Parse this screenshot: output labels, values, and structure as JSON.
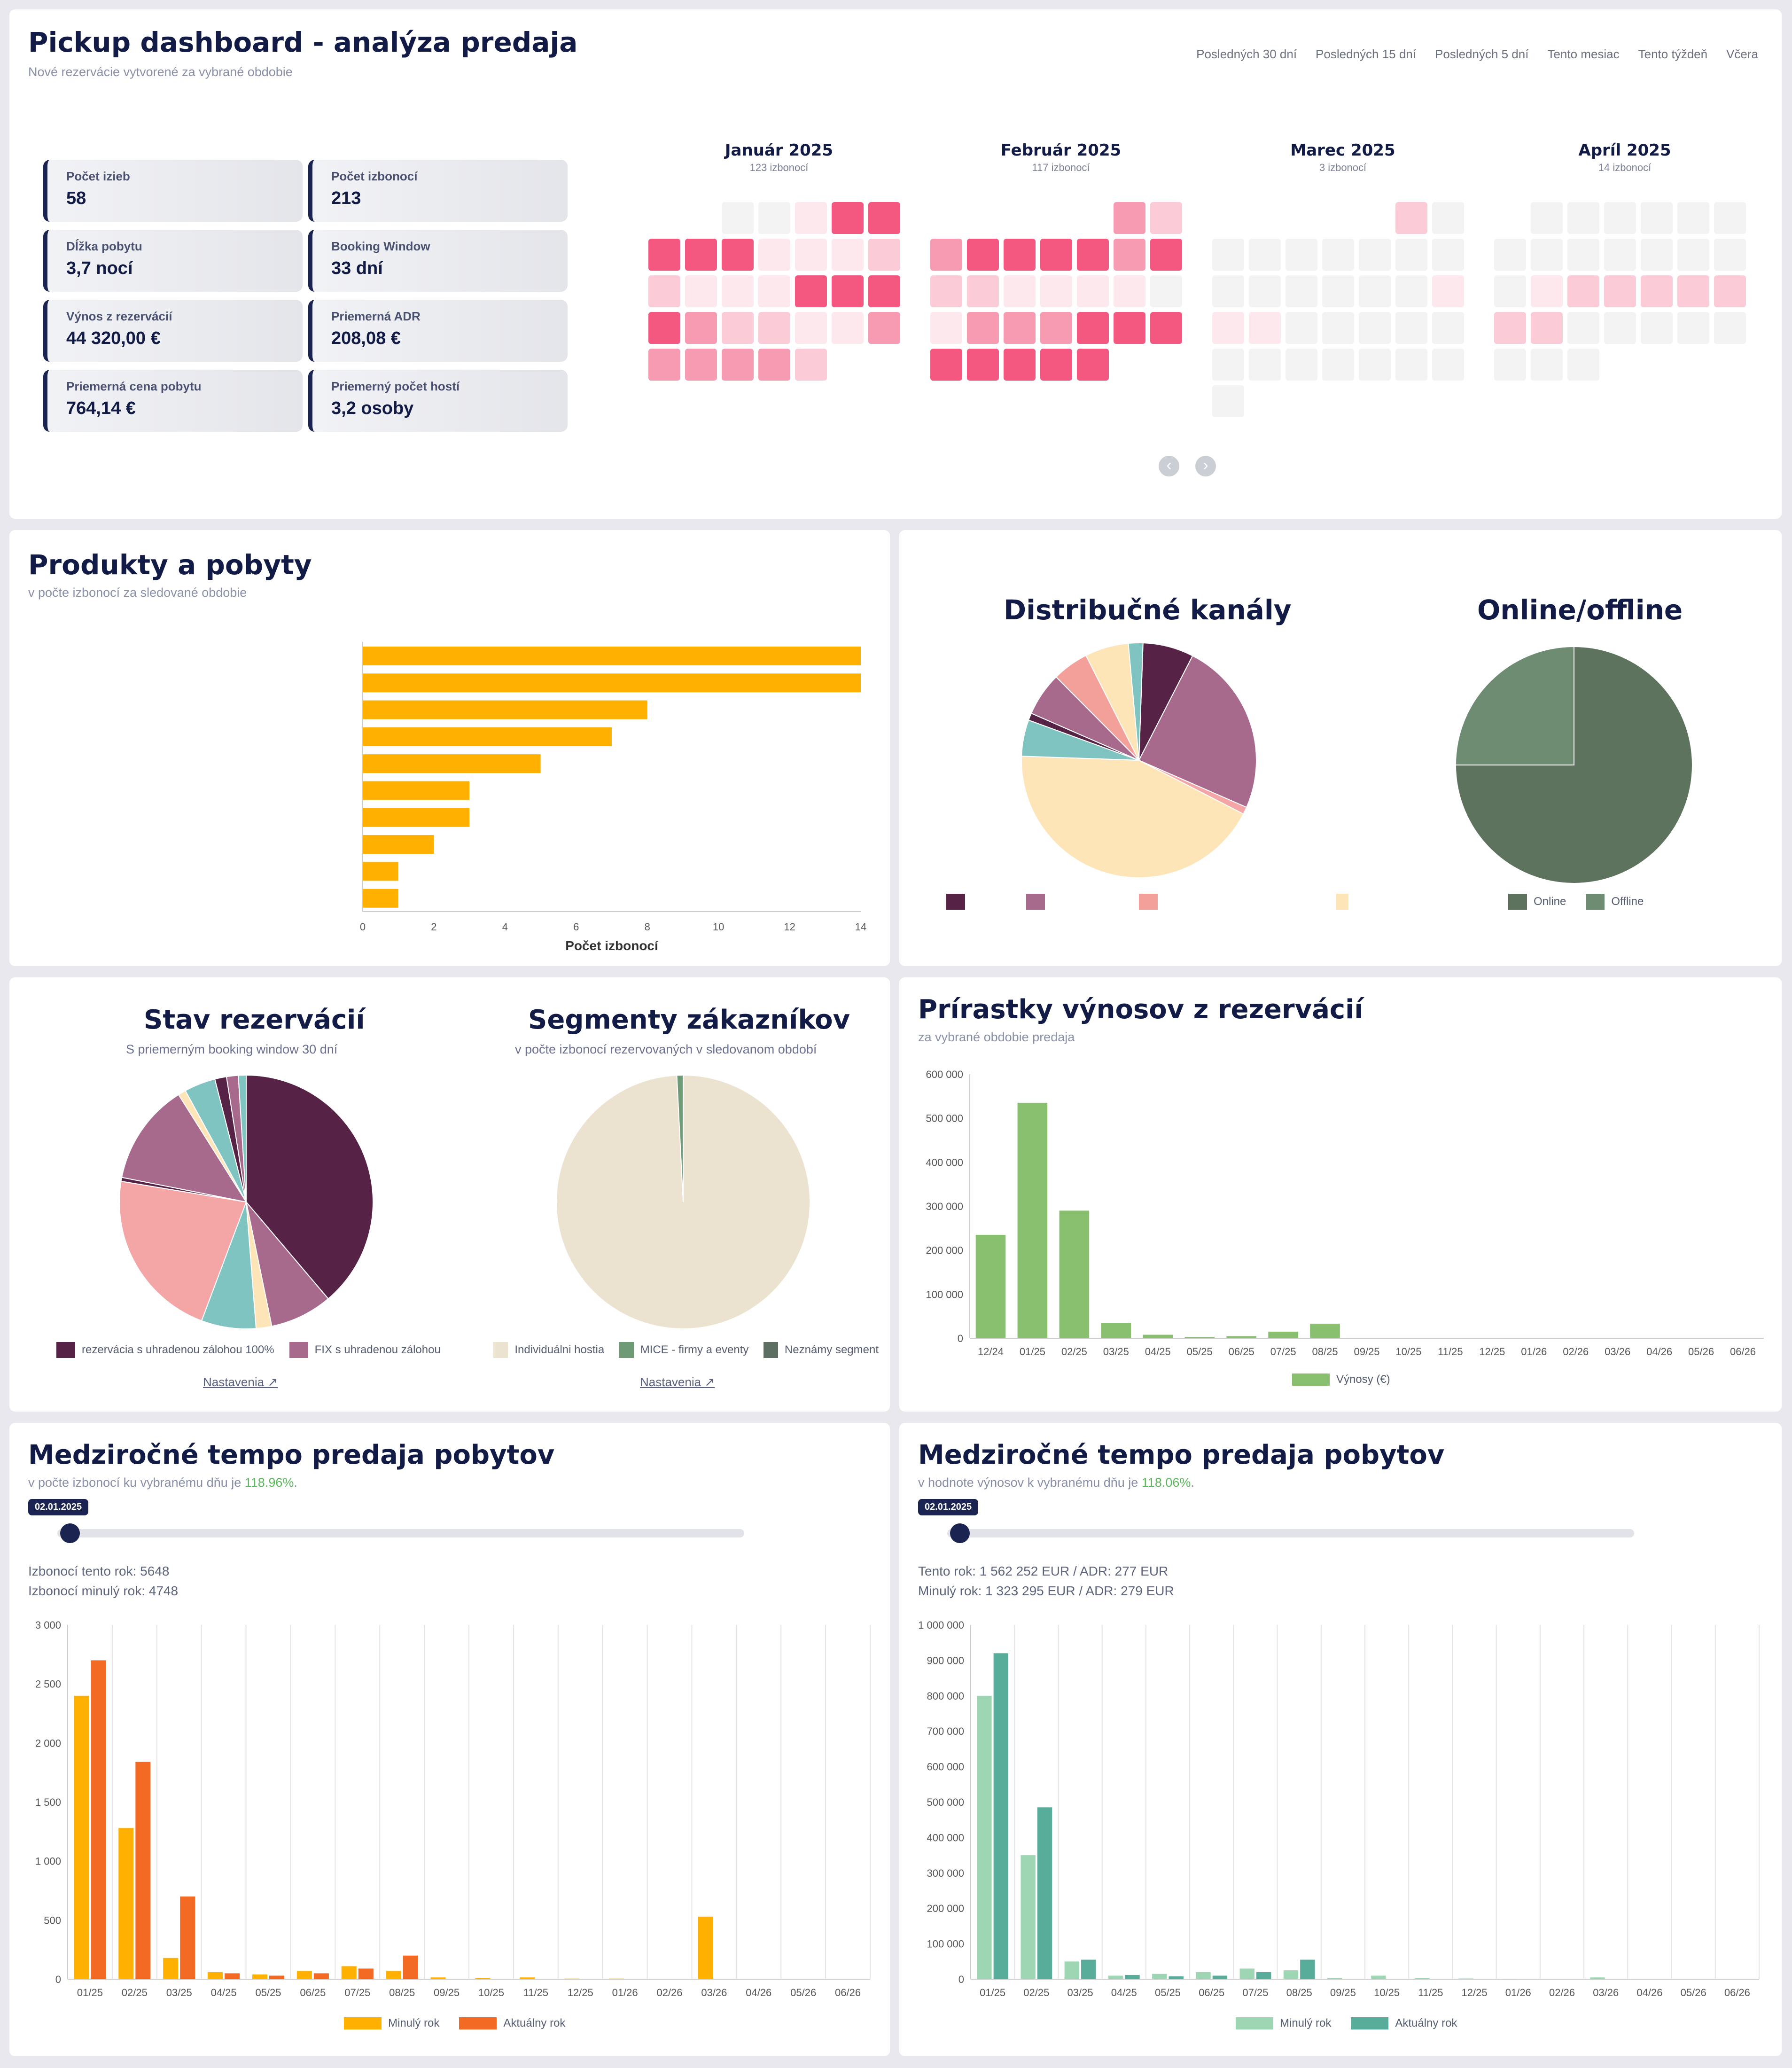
{
  "header": {
    "title": "Pickup dashboard - analýza predaja",
    "subtitle": "Nové rezervácie vytvorené za vybrané obdobie",
    "ranges": [
      "Posledných 30 dní",
      "Posledných 15 dní",
      "Posledných 5 dní",
      "Tento mesiac",
      "Tento týždeň",
      "Včera"
    ]
  },
  "kpis": [
    {
      "label": "Počet izieb",
      "value": "58"
    },
    {
      "label": "Počet izbonocí",
      "value": "213"
    },
    {
      "label": "Dĺžka pobytu",
      "value": "3,7 nocí"
    },
    {
      "label": "Booking Window",
      "value": "33 dní"
    },
    {
      "label": "Výnos z rezervácií",
      "value": "44 320,00 €"
    },
    {
      "label": "Priemerná ADR",
      "value": "208,08 €"
    },
    {
      "label": "Priemerná cena pobytu",
      "value": "764,14 €"
    },
    {
      "label": "Priemerný počet hostí",
      "value": "3,2 osoby"
    }
  ],
  "calendars": [
    {
      "month": "Január 2025",
      "count": "123 izbonocí",
      "offset": 2,
      "days": 31,
      "levels": [
        0,
        0,
        1,
        4,
        4,
        4,
        4,
        4,
        1,
        1,
        1,
        2,
        2,
        1,
        1,
        1,
        4,
        4,
        4,
        4,
        3,
        2,
        2,
        1,
        1,
        3,
        3,
        3,
        3,
        3,
        2
      ]
    },
    {
      "month": "Február 2025",
      "count": "117 izbonocí",
      "offset": 5,
      "days": 28,
      "levels": [
        3,
        2,
        3,
        4,
        4,
        4,
        4,
        3,
        4,
        2,
        2,
        1,
        1,
        1,
        1,
        0,
        1,
        3,
        3,
        3,
        4,
        4,
        4,
        4,
        4,
        4,
        4,
        4
      ]
    },
    {
      "month": "Marec 2025",
      "count": "3 izbonocí",
      "offset": 5,
      "days": 31,
      "levels": [
        2,
        0,
        0,
        0,
        0,
        0,
        0,
        0,
        0,
        0,
        0,
        0,
        0,
        0,
        0,
        1,
        1,
        1,
        0,
        0,
        0,
        0,
        0,
        0,
        0,
        0,
        0,
        0,
        0,
        0,
        0
      ]
    },
    {
      "month": "Apríl 2025",
      "count": "14 izbonocí",
      "offset": 1,
      "days": 30,
      "levels": [
        0,
        0,
        0,
        0,
        0,
        0,
        0,
        0,
        0,
        0,
        0,
        0,
        0,
        0,
        1,
        2,
        2,
        2,
        2,
        2,
        2,
        2,
        0,
        0,
        0,
        0,
        0,
        0,
        0,
        0
      ]
    }
  ],
  "calendar_colors": [
    "#f3f3f3",
    "#fde8ee",
    "#fbcbd8",
    "#f79bb3",
    "#f4577f"
  ],
  "products": {
    "title": "Produkty a pobyty",
    "subtitle": "v počte izbonocí za sledované obdobie",
    "chart_data": {
      "type": "bar",
      "categories": [
        "",
        "",
        "",
        "",
        "",
        "",
        "",
        "",
        "",
        ""
      ],
      "values": [
        14,
        14,
        8,
        7,
        5,
        3,
        3,
        2,
        1,
        1
      ],
      "xlabel": "Počet izbonocí",
      "ticks": [
        "0",
        "2",
        "4",
        "6",
        "8",
        "10",
        "12",
        "14"
      ],
      "xlim": [
        0,
        14
      ],
      "color": "#ffb000"
    }
  },
  "channels": {
    "title": "Distribučné kanály",
    "chart_data": {
      "type": "pie",
      "slices": [
        {
          "value": 7,
          "color": "#562246"
        },
        {
          "value": 24,
          "color": "#a86a8c"
        },
        {
          "value": 1,
          "color": "#f4a6a6"
        },
        {
          "value": 43,
          "color": "#fde5b8"
        },
        {
          "value": 5,
          "color": "#80c4c2"
        },
        {
          "value": 1,
          "color": "#562246"
        },
        {
          "value": 6,
          "color": "#a86a8c"
        },
        {
          "value": 5,
          "color": "#f4a09a"
        },
        {
          "value": 6,
          "color": "#fde5b8"
        },
        {
          "value": 2,
          "color": "#80c4c2"
        }
      ]
    },
    "legend": [
      {
        "label": "",
        "color": "#562246"
      },
      {
        "label": "",
        "color": "#a86a8c"
      },
      {
        "label": "",
        "color": "#f4a09a"
      },
      {
        "label": "",
        "color": "#fde5b8"
      }
    ]
  },
  "online": {
    "title": "Online/offline",
    "chart_data": {
      "type": "pie",
      "slices": [
        {
          "value": 75,
          "color": "#5d735e"
        },
        {
          "value": 25,
          "color": "#6e8c72"
        }
      ]
    },
    "legend": [
      {
        "label": "Online",
        "color": "#5d735e"
      },
      {
        "label": "Offline",
        "color": "#6e8c72"
      }
    ]
  },
  "status": {
    "title": "Stav rezervácií",
    "subtitle": "S priemerným booking window 30 dní",
    "chart_data": {
      "type": "pie",
      "slices": [
        {
          "value": 39,
          "color": "#562246"
        },
        {
          "value": 8,
          "color": "#a86a8c"
        },
        {
          "value": 2,
          "color": "#fde5b8"
        },
        {
          "value": 7,
          "color": "#80c4c2"
        },
        {
          "value": 22,
          "color": "#f4a6a6"
        },
        {
          "value": 0.5,
          "color": "#562246"
        },
        {
          "value": 13,
          "color": "#a86a8c"
        },
        {
          "value": 1,
          "color": "#fde5b8"
        },
        {
          "value": 4,
          "color": "#80c4c2"
        },
        {
          "value": 1.5,
          "color": "#562246"
        },
        {
          "value": 1.5,
          "color": "#a86a8c"
        },
        {
          "value": 1,
          "color": "#80c4c2"
        }
      ]
    },
    "legend": [
      {
        "label": "rezervácia s uhradenou zálohou 100%",
        "color": "#562246"
      },
      {
        "label": "FIX s uhradenou zálohou",
        "color": "#a86a8c"
      }
    ],
    "link": "Nastavenia"
  },
  "segments": {
    "title": "Segmenty zákazníkov",
    "subtitle": "v počte izbonocí rezervovaných v sledovanom období",
    "chart_data": {
      "type": "pie",
      "slices": [
        {
          "value": 99.2,
          "color": "#ebe3cf"
        },
        {
          "value": 0.8,
          "color": "#6e9a76"
        }
      ]
    },
    "legend": [
      {
        "label": "Individuálni hostia",
        "color": "#ebe3cf"
      },
      {
        "label": "MICE - firmy a eventy",
        "color": "#6e9a76"
      },
      {
        "label": "Neznámy segment",
        "color": "#5d6e62"
      }
    ],
    "link": "Nastavenia"
  },
  "revenue": {
    "title": "Prírastky výnosov z rezervácií",
    "subtitle": "za vybrané obdobie predaja",
    "chart_data": {
      "type": "bar",
      "categories": [
        "12/24",
        "01/25",
        "02/25",
        "03/25",
        "04/25",
        "05/25",
        "06/25",
        "07/25",
        "08/25",
        "09/25",
        "10/25",
        "11/25",
        "12/25",
        "01/26",
        "02/26",
        "03/26",
        "04/26",
        "05/26",
        "06/26"
      ],
      "values": [
        235000,
        535000,
        290000,
        35000,
        8000,
        3000,
        5000,
        15000,
        33000,
        0,
        0,
        0,
        0,
        0,
        0,
        0,
        0,
        0,
        0
      ],
      "ylim": [
        0,
        600000
      ],
      "yticks": [
        "0",
        "100 000",
        "200 000",
        "300 000",
        "400 000",
        "500 000",
        "600 000"
      ],
      "series_name": "Výnosy (€)",
      "color": "#88c070"
    }
  },
  "pace_nights": {
    "title": "Medziročné tempo predaja pobytov",
    "subtitle_prefix": "v počte izbonocí ku vybranému dňu je ",
    "percent": "118.96%",
    "date_badge": "02.01.2025",
    "info1": "Izbonocí tento rok: 5648",
    "info2": "Izbonocí minulý rok: 4748",
    "chart_data": {
      "type": "bar",
      "categories": [
        "01/25",
        "02/25",
        "03/25",
        "04/25",
        "05/25",
        "06/25",
        "07/25",
        "08/25",
        "09/25",
        "10/25",
        "11/25",
        "12/25",
        "01/26",
        "02/26",
        "03/26",
        "04/26",
        "05/26",
        "06/26"
      ],
      "series": [
        {
          "name": "Minulý rok",
          "color": "#ffb000",
          "values": [
            2400,
            1280,
            180,
            60,
            40,
            70,
            110,
            70,
            15,
            10,
            15,
            5,
            5,
            0,
            530,
            0,
            0,
            0
          ]
        },
        {
          "name": "Aktuálny rok",
          "color": "#f26a24",
          "values": [
            2700,
            1840,
            700,
            50,
            30,
            50,
            90,
            200,
            0,
            0,
            0,
            0,
            0,
            0,
            0,
            0,
            0,
            0
          ]
        }
      ],
      "ylim": [
        0,
        3000
      ],
      "yticks": [
        "0",
        "500",
        "1 000",
        "1 500",
        "2 000",
        "2 500",
        "3 000"
      ]
    }
  },
  "pace_revenue": {
    "title": "Medziročné tempo predaja pobytov",
    "subtitle_prefix": "v hodnote výnosov k vybranému dňu je ",
    "percent": "118.06%",
    "date_badge": "02.01.2025",
    "info1": "Tento rok: 1 562 252 EUR / ADR: 277 EUR",
    "info2": "Minulý rok: 1 323 295 EUR / ADR: 279 EUR",
    "chart_data": {
      "type": "bar",
      "categories": [
        "01/25",
        "02/25",
        "03/25",
        "04/25",
        "05/25",
        "06/25",
        "07/25",
        "08/25",
        "09/25",
        "10/25",
        "11/25",
        "12/25",
        "01/26",
        "02/26",
        "03/26",
        "04/26",
        "05/26",
        "06/26"
      ],
      "series": [
        {
          "name": "Minulý rok",
          "color": "#9ed6b4",
          "values": [
            800000,
            350000,
            50000,
            10000,
            15000,
            20000,
            30000,
            25000,
            3000,
            10000,
            3000,
            2000,
            1000,
            0,
            5000,
            0,
            0,
            0
          ]
        },
        {
          "name": "Aktuálny rok",
          "color": "#58ad9a",
          "values": [
            920000,
            485000,
            55000,
            12000,
            8000,
            10000,
            20000,
            55000,
            0,
            0,
            0,
            0,
            0,
            0,
            0,
            0,
            0,
            0
          ]
        }
      ],
      "ylim": [
        0,
        1000000
      ],
      "yticks": [
        "0",
        "100 000",
        "200 000",
        "300 000",
        "400 000",
        "500 000",
        "600 000",
        "700 000",
        "800 000",
        "900 000",
        "1 000 000"
      ]
    }
  }
}
